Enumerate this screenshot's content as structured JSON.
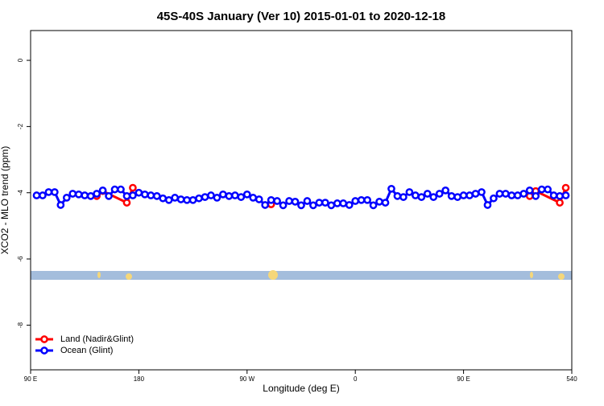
{
  "chart_data": {
    "type": "line",
    "title": "45S-40S January (Ver 10)   2015-01-01 to 2020-12-18",
    "x_label": "Longitude (deg E)",
    "y_label": "XCO2 - MLO trend (ppm)",
    "xlim": [
      90,
      540
    ],
    "ylim": [
      -9.35,
      0.9
    ],
    "xticks": [
      {
        "value": 90,
        "label": "90 E"
      },
      180,
      {
        "value": 270,
        "label": "90 W"
      },
      {
        "value": 360,
        "label": "0"
      },
      {
        "value": 450,
        "label": "90 E"
      },
      540
    ],
    "yticks": [
      0,
      -2,
      -4,
      -6,
      -8
    ],
    "legend": "bottom-left",
    "series": [
      {
        "name": "Land (Nadir&Glint)",
        "color": "#ff0000",
        "x": [
          145,
          150,
          170,
          175,
          180,
          290,
          500,
          505,
          510,
          530,
          535
        ],
        "values": [
          -4.1,
          -3.95,
          -4.3,
          -3.85,
          null,
          -4.35,
          null,
          -4.1,
          -3.95,
          -4.3,
          -3.85
        ]
      },
      {
        "name": "Ocean (Glint)",
        "color": "#0000ff",
        "x": [
          95,
          100,
          105,
          110,
          115,
          120,
          125,
          130,
          135,
          140,
          145,
          150,
          155,
          160,
          165,
          170,
          175,
          180,
          185,
          190,
          195,
          200,
          205,
          210,
          215,
          220,
          225,
          230,
          235,
          240,
          245,
          250,
          255,
          260,
          265,
          270,
          275,
          280,
          285,
          290,
          295,
          300,
          305,
          310,
          315,
          320,
          325,
          330,
          335,
          340,
          345,
          350,
          355,
          360,
          365,
          370,
          375,
          380,
          385,
          390,
          395,
          400,
          405,
          410,
          415,
          420,
          425,
          430,
          435,
          440,
          445,
          450,
          455,
          460,
          465,
          470,
          475,
          480,
          485,
          490,
          495,
          500,
          505,
          510,
          515,
          520,
          525,
          530,
          535
        ],
        "values": [
          -4.08,
          -4.08,
          -3.98,
          -3.98,
          -4.37,
          -4.15,
          -4.03,
          -4.05,
          -4.08,
          -4.1,
          -4.03,
          -3.93,
          -4.1,
          -3.9,
          -3.9,
          -4.1,
          -4.08,
          -4.0,
          -4.05,
          -4.08,
          -4.1,
          -4.17,
          -4.22,
          -4.15,
          -4.2,
          -4.22,
          -4.22,
          -4.17,
          -4.13,
          -4.08,
          -4.15,
          -4.05,
          -4.1,
          -4.08,
          -4.13,
          -4.05,
          -4.15,
          -4.2,
          -4.37,
          -4.22,
          -4.25,
          -4.38,
          -4.25,
          -4.27,
          -4.38,
          -4.25,
          -4.38,
          -4.3,
          -4.3,
          -4.38,
          -4.32,
          -4.32,
          -4.37,
          -4.25,
          -4.22,
          -4.22,
          -4.38,
          -4.27,
          -4.3,
          -3.88,
          -4.1,
          -4.13,
          -3.98,
          -4.08,
          -4.13,
          -4.03,
          -4.13,
          -4.03,
          -3.93,
          -4.1,
          -4.13,
          -4.08,
          -4.08,
          -4.03,
          -3.98,
          -4.37,
          -4.17,
          -4.03,
          -4.03,
          -4.08,
          -4.08,
          -4.03,
          -3.93,
          -4.1,
          -3.9,
          -3.9,
          -4.08,
          -4.1,
          -4.08
        ]
      }
    ]
  }
}
